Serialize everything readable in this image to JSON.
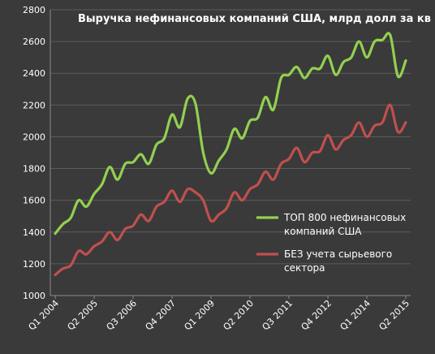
{
  "chart_data": {
    "type": "line",
    "title": "Выручка нефинансовых компаний  США, млрд долл за кв",
    "xlabel": "",
    "ylabel": "",
    "ylim": [
      1000,
      2800
    ],
    "yticks": [
      1000,
      1200,
      1400,
      1600,
      1800,
      2000,
      2200,
      2400,
      2600,
      2800
    ],
    "grid": "horizontal",
    "legend_position": "right",
    "x": [
      "Q1 2004",
      "Q2 2004",
      "Q3 2004",
      "Q4 2004",
      "Q1 2005",
      "Q2 2005",
      "Q3 2005",
      "Q4 2005",
      "Q1 2006",
      "Q2 2006",
      "Q3 2006",
      "Q4 2006",
      "Q1 2007",
      "Q2 2007",
      "Q3 2007",
      "Q4 2007",
      "Q1 2008",
      "Q2 2008",
      "Q3 2008",
      "Q4 2008",
      "Q1 2009",
      "Q2 2009",
      "Q3 2009",
      "Q4 2009",
      "Q1 2010",
      "Q2 2010",
      "Q3 2010",
      "Q4 2010",
      "Q1 2011",
      "Q2 2011",
      "Q3 2011",
      "Q4 2011",
      "Q1 2012",
      "Q2 2012",
      "Q3 2012",
      "Q4 2012",
      "Q1 2013",
      "Q2 2013",
      "Q3 2013",
      "Q4 2013",
      "Q1 2014",
      "Q2 2014",
      "Q3 2014",
      "Q4 2014",
      "Q1 2015",
      "Q2 2015"
    ],
    "x_tick_labels": [
      "Q1 2004",
      "Q2 2005",
      "Q3 2006",
      "Q4 2007",
      "Q1 2009",
      "Q2 2010",
      "Q3 2011",
      "Q4 2012",
      "Q1 2014",
      "Q2 2015"
    ],
    "series": [
      {
        "name": "ТОП 800  нефинансовых компаний США",
        "color": "#92d050",
        "values": [
          1390,
          1450,
          1490,
          1600,
          1560,
          1640,
          1700,
          1810,
          1730,
          1830,
          1840,
          1890,
          1830,
          1950,
          1990,
          2140,
          2060,
          2240,
          2210,
          1900,
          1770,
          1850,
          1920,
          2050,
          1990,
          2100,
          2120,
          2250,
          2170,
          2370,
          2390,
          2440,
          2370,
          2430,
          2430,
          2510,
          2390,
          2470,
          2500,
          2600,
          2500,
          2600,
          2610,
          2640,
          2380,
          2480
        ]
      },
      {
        "name": "БЕЗ учета сырьевого сектора",
        "color": "#c0504d",
        "values": [
          1130,
          1170,
          1190,
          1280,
          1260,
          1310,
          1340,
          1400,
          1350,
          1420,
          1440,
          1510,
          1470,
          1560,
          1590,
          1660,
          1590,
          1670,
          1650,
          1600,
          1470,
          1510,
          1550,
          1650,
          1600,
          1670,
          1700,
          1780,
          1730,
          1830,
          1860,
          1930,
          1840,
          1900,
          1910,
          2010,
          1920,
          1980,
          2010,
          2090,
          2000,
          2070,
          2090,
          2200,
          2030,
          2090
        ]
      }
    ]
  }
}
